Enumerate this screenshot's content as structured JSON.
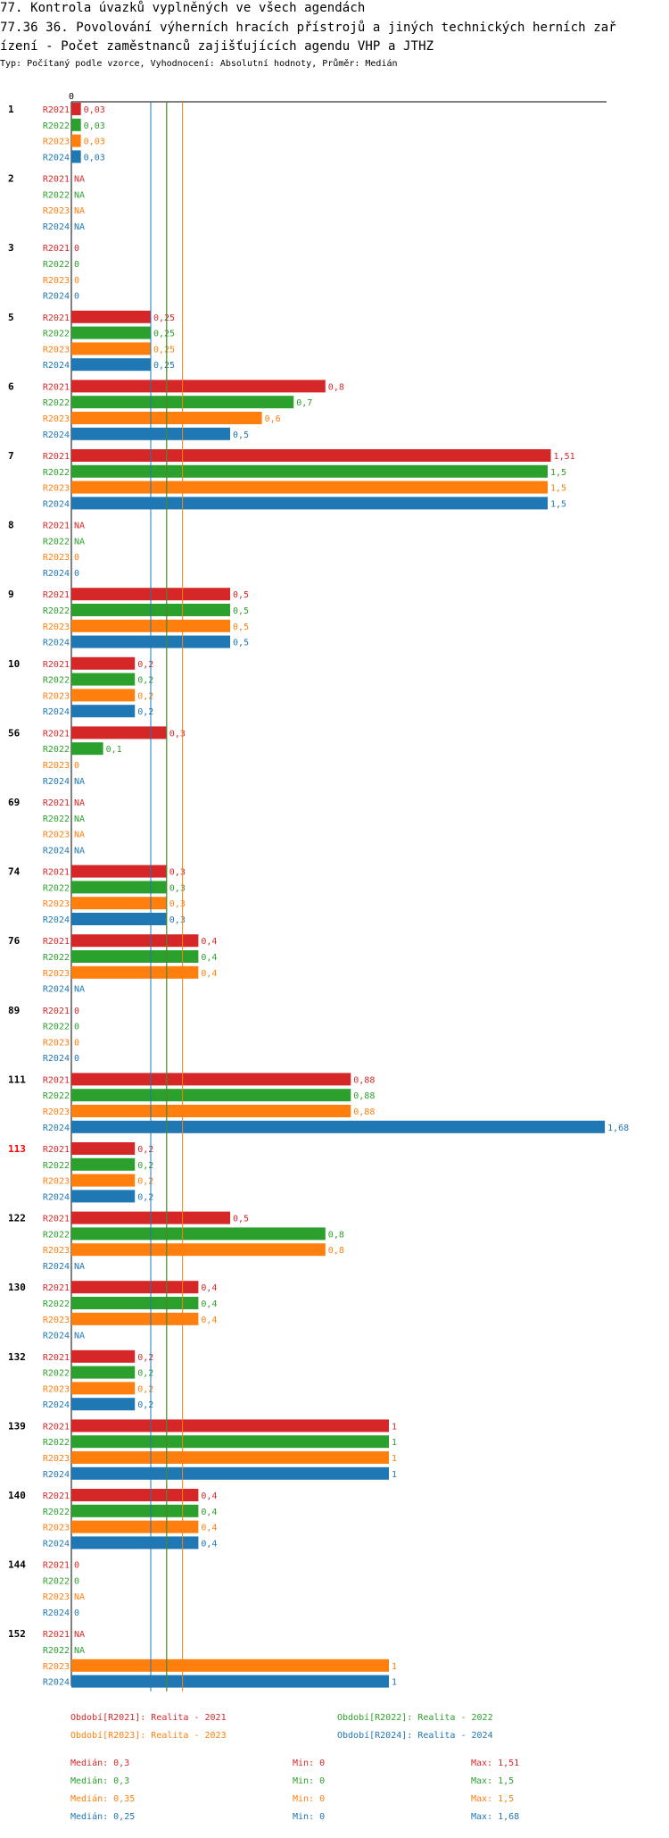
{
  "header": {
    "line1": "77. Kontrola úvazků vyplněných ve všech agendách",
    "line2": "77.36 36. Povolování výherních hracích přístrojů a jiných technických herních zař",
    "line3": "ízení - Počet zaměstnanců zajišťujících agendu VHP a JTHZ",
    "subtitle": "Typ: Počítaný podle vzorce, Vyhodnocení: Absolutní hodnoty, Průměr: Medián"
  },
  "colors": {
    "R2021": "#d62728",
    "R2022": "#2ca02c",
    "R2023": "#ff7f0e",
    "R2024": "#1f77b4",
    "highlight": "#ff0000"
  },
  "chart_data": {
    "type": "bar",
    "orientation": "horizontal",
    "axis_zero_label": "0",
    "xlim": [
      0,
      1.68
    ],
    "series_names": [
      "R2021",
      "R2022",
      "R2023",
      "R2024"
    ],
    "groups": [
      {
        "label": "1",
        "highlight": false,
        "values": [
          0.03,
          0.03,
          0.03,
          0.03
        ],
        "labels": [
          "0,03",
          "0,03",
          "0,03",
          "0,03"
        ]
      },
      {
        "label": "2",
        "highlight": false,
        "values": [
          null,
          null,
          null,
          null
        ],
        "labels": [
          "NA",
          "NA",
          "NA",
          "NA"
        ]
      },
      {
        "label": "3",
        "highlight": false,
        "values": [
          0,
          0,
          0,
          0
        ],
        "labels": [
          "0",
          "0",
          "0",
          "0"
        ]
      },
      {
        "label": "5",
        "highlight": false,
        "values": [
          0.25,
          0.25,
          0.25,
          0.25
        ],
        "labels": [
          "0,25",
          "0,25",
          "0,25",
          "0,25"
        ]
      },
      {
        "label": "6",
        "highlight": false,
        "values": [
          0.8,
          0.7,
          0.6,
          0.5
        ],
        "labels": [
          "0,8",
          "0,7",
          "0,6",
          "0,5"
        ]
      },
      {
        "label": "7",
        "highlight": false,
        "values": [
          1.51,
          1.5,
          1.5,
          1.5
        ],
        "labels": [
          "1,51",
          "1,5",
          "1,5",
          "1,5"
        ]
      },
      {
        "label": "8",
        "highlight": false,
        "values": [
          null,
          null,
          0,
          0
        ],
        "labels": [
          "NA",
          "NA",
          "0",
          "0"
        ]
      },
      {
        "label": "9",
        "highlight": false,
        "values": [
          0.5,
          0.5,
          0.5,
          0.5
        ],
        "labels": [
          "0,5",
          "0,5",
          "0,5",
          "0,5"
        ]
      },
      {
        "label": "10",
        "highlight": false,
        "values": [
          0.2,
          0.2,
          0.2,
          0.2
        ],
        "labels": [
          "0,2",
          "0,2",
          "0,2",
          "0,2"
        ]
      },
      {
        "label": "56",
        "highlight": false,
        "values": [
          0.3,
          0.1,
          0,
          null
        ],
        "labels": [
          "0,3",
          "0,1",
          "0",
          "NA"
        ]
      },
      {
        "label": "69",
        "highlight": false,
        "values": [
          null,
          null,
          null,
          null
        ],
        "labels": [
          "NA",
          "NA",
          "NA",
          "NA"
        ]
      },
      {
        "label": "74",
        "highlight": false,
        "values": [
          0.3,
          0.3,
          0.3,
          0.3
        ],
        "labels": [
          "0,3",
          "0,3",
          "0,3",
          "0,3"
        ]
      },
      {
        "label": "76",
        "highlight": false,
        "values": [
          0.4,
          0.4,
          0.4,
          null
        ],
        "labels": [
          "0,4",
          "0,4",
          "0,4",
          "NA"
        ]
      },
      {
        "label": "89",
        "highlight": false,
        "values": [
          0,
          0,
          0,
          0
        ],
        "labels": [
          "0",
          "0",
          "0",
          "0"
        ]
      },
      {
        "label": "111",
        "highlight": false,
        "values": [
          0.88,
          0.88,
          0.88,
          1.68
        ],
        "labels": [
          "0,88",
          "0,88",
          "0,88",
          "1,68"
        ]
      },
      {
        "label": "113",
        "highlight": true,
        "values": [
          0.2,
          0.2,
          0.2,
          0.2
        ],
        "labels": [
          "0,2",
          "0,2",
          "0,2",
          "0,2"
        ]
      },
      {
        "label": "122",
        "highlight": false,
        "values": [
          0.5,
          0.8,
          0.8,
          null
        ],
        "labels": [
          "0,5",
          "0,8",
          "0,8",
          "NA"
        ]
      },
      {
        "label": "130",
        "highlight": false,
        "values": [
          0.4,
          0.4,
          0.4,
          null
        ],
        "labels": [
          "0,4",
          "0,4",
          "0,4",
          "NA"
        ]
      },
      {
        "label": "132",
        "highlight": false,
        "values": [
          0.2,
          0.2,
          0.2,
          0.2
        ],
        "labels": [
          "0,2",
          "0,2",
          "0,2",
          "0,2"
        ]
      },
      {
        "label": "139",
        "highlight": false,
        "values": [
          1,
          1,
          1,
          1
        ],
        "labels": [
          "1",
          "1",
          "1",
          "1"
        ]
      },
      {
        "label": "140",
        "highlight": false,
        "values": [
          0.4,
          0.4,
          0.4,
          0.4
        ],
        "labels": [
          "0,4",
          "0,4",
          "0,4",
          "0,4"
        ]
      },
      {
        "label": "144",
        "highlight": false,
        "values": [
          0,
          0,
          null,
          0
        ],
        "labels": [
          "0",
          "0",
          "NA",
          "0"
        ]
      },
      {
        "label": "152",
        "highlight": false,
        "values": [
          null,
          null,
          1,
          1
        ],
        "labels": [
          "NA",
          "NA",
          "1",
          "1"
        ]
      }
    ],
    "reference_lines": [
      {
        "series": "R2021",
        "value": 0.3
      },
      {
        "series": "R2022",
        "value": 0.3
      },
      {
        "series": "R2023",
        "value": 0.35
      },
      {
        "series": "R2024",
        "value": 0.25
      }
    ]
  },
  "legend": {
    "entries": [
      {
        "series": "R2021",
        "text": "Období[R2021]: Realita - 2021"
      },
      {
        "series": "R2022",
        "text": "Období[R2022]: Realita - 2022"
      },
      {
        "series": "R2023",
        "text": "Období[R2023]: Realita - 2023"
      },
      {
        "series": "R2024",
        "text": "Období[R2024]: Realita - 2024"
      }
    ],
    "stats": [
      {
        "series": "R2021",
        "median": "Medián: 0,3",
        "min": "Min: 0",
        "max": "Max: 1,51"
      },
      {
        "series": "R2022",
        "median": "Medián: 0,3",
        "min": "Min: 0",
        "max": "Max: 1,5"
      },
      {
        "series": "R2023",
        "median": "Medián: 0,35",
        "min": "Min: 0",
        "max": "Max: 1,5"
      },
      {
        "series": "R2024",
        "median": "Medián: 0,25",
        "min": "Min: 0",
        "max": "Max: 1,68"
      }
    ]
  }
}
